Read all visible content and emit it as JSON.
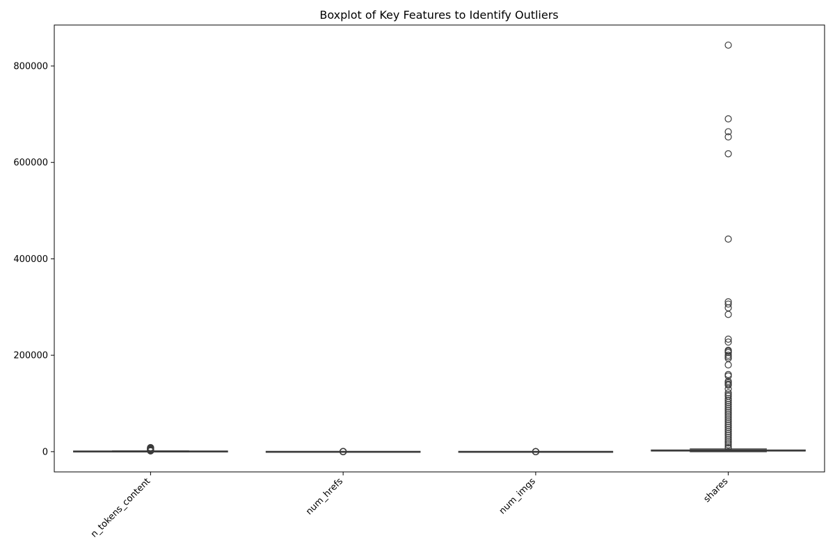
{
  "chart_data": {
    "type": "boxplot",
    "title": "Boxplot of Key Features to Identify Outliers",
    "xlabel": "",
    "ylabel": "",
    "ylim": [
      -42000,
      885000
    ],
    "yticks": [
      0,
      200000,
      400000,
      600000,
      800000
    ],
    "ytick_labels": [
      "0",
      "200000",
      "400000",
      "600000",
      "800000"
    ],
    "categories": [
      "n_tokens_content",
      "num_hrefs",
      "num_imgs",
      "shares"
    ],
    "xtick_rotation": 45,
    "grid": false,
    "colors": {
      "box": "#3b3b3b",
      "outlier": "#3b3b3b",
      "frame": "#000000"
    },
    "boxes": [
      {
        "category": "n_tokens_content",
        "whislo": 0,
        "q1": 246,
        "median": 409,
        "q3": 716,
        "whishi": 1420,
        "outliers": [
          1500,
          1800,
          2200,
          2600,
          3000,
          3500,
          4000,
          4500,
          5000,
          5500,
          6000,
          6500,
          7000,
          7500,
          8000,
          8474
        ]
      },
      {
        "category": "num_hrefs",
        "whislo": 0,
        "q1": 4,
        "median": 8,
        "q3": 14,
        "whishi": 29,
        "outliers": [
          30,
          50,
          80,
          110,
          150,
          187,
          220,
          304
        ]
      },
      {
        "category": "num_imgs",
        "whislo": 0,
        "q1": 1,
        "median": 1,
        "q3": 4,
        "whishi": 8,
        "outliers": [
          9,
          20,
          40,
          60,
          80,
          100,
          128
        ]
      },
      {
        "category": "shares",
        "whislo": 1,
        "q1": 946,
        "median": 1400,
        "q3": 2800,
        "whishi": 5600,
        "outliers": [
          843300,
          690400,
          663600,
          652900,
          617900,
          441000,
          310800,
          306100,
          298400,
          284700,
          233400,
          227300,
          210300,
          208300,
          205600,
          200100,
          196700,
          193400,
          180000,
          160000,
          157000,
          146000,
          143000,
          140000,
          138000,
          130000,
          122000,
          118000,
          115000,
          110000,
          106000,
          102000,
          98000,
          94000,
          90000,
          86000,
          82000,
          78000,
          74000,
          70000,
          66000,
          62000,
          58000,
          54000,
          50000,
          46000,
          42000,
          38000,
          34000,
          30000,
          26000,
          22000,
          18000,
          14000,
          10000,
          7000
        ]
      }
    ]
  }
}
